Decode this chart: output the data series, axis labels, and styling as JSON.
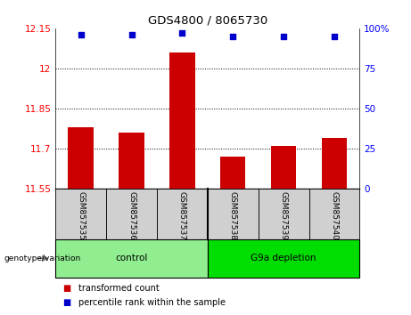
{
  "title": "GDS4800 / 8065730",
  "samples": [
    "GSM857535",
    "GSM857536",
    "GSM857537",
    "GSM857538",
    "GSM857539",
    "GSM857540"
  ],
  "bar_values": [
    11.78,
    11.76,
    12.06,
    11.67,
    11.71,
    11.74
  ],
  "percentile_values": [
    96,
    96,
    97,
    95,
    95,
    95
  ],
  "bar_color": "#cc0000",
  "dot_color": "#0000cc",
  "ylim_left": [
    11.55,
    12.15
  ],
  "ylim_right": [
    0,
    100
  ],
  "yticks_left": [
    11.55,
    11.7,
    11.85,
    12.0,
    12.15
  ],
  "yticks_right": [
    0,
    25,
    50,
    75,
    100
  ],
  "ytick_labels_left": [
    "11.55",
    "11.7",
    "11.85",
    "12",
    "12.15"
  ],
  "ytick_labels_right": [
    "0",
    "25",
    "50",
    "75",
    "100%"
  ],
  "hlines": [
    11.7,
    11.85,
    12.0
  ],
  "groups": [
    {
      "label": "control",
      "indices": [
        0,
        1,
        2
      ],
      "color": "#90ee90"
    },
    {
      "label": "G9a depletion",
      "indices": [
        3,
        4,
        5
      ],
      "color": "#00dd00"
    }
  ],
  "group_label_prefix": "genotype/variation",
  "legend_items": [
    {
      "label": "transformed count",
      "color": "#cc0000"
    },
    {
      "label": "percentile rank within the sample",
      "color": "#0000cc"
    }
  ],
  "bar_width": 0.5,
  "background_plot": "#ffffff",
  "background_xtick": "#d0d0d0"
}
